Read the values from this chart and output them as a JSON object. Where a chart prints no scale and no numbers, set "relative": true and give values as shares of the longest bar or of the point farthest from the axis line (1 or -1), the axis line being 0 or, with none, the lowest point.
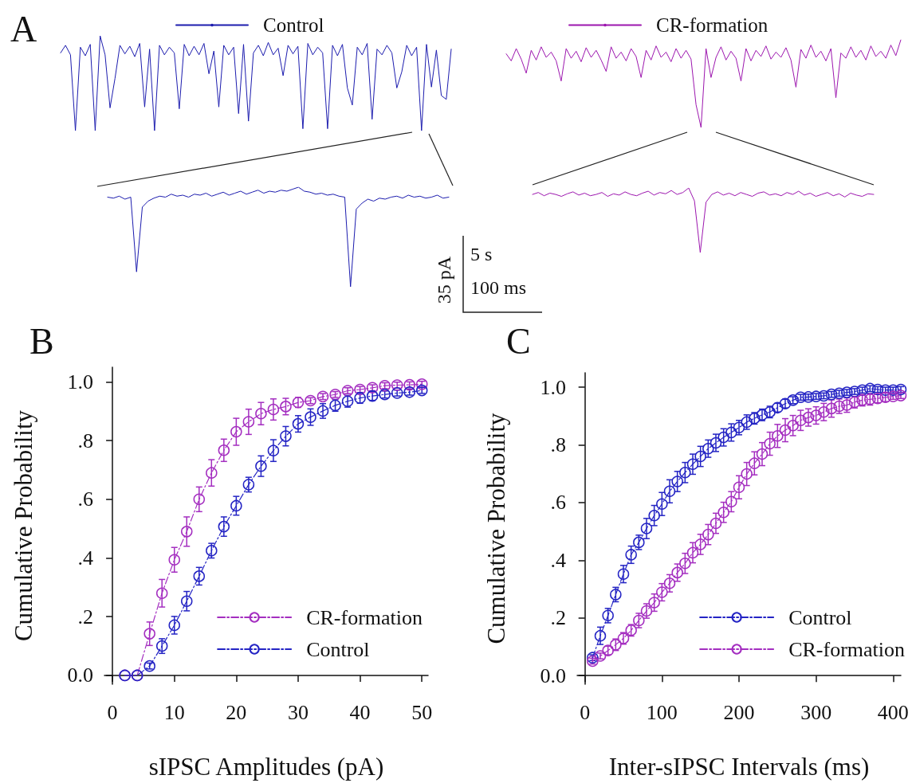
{
  "chart_data": [
    {
      "type": "line",
      "title": "A",
      "relative": true,
      "legend": "top",
      "categories": [
        null,
        null,
        null,
        null,
        null,
        null,
        null,
        null,
        null,
        null,
        null,
        null,
        null,
        null,
        null,
        null,
        null,
        null,
        null,
        null,
        null,
        null,
        null,
        null,
        null,
        null,
        null,
        null,
        null,
        null,
        null,
        null,
        null,
        null,
        null,
        null,
        null,
        null,
        null,
        null,
        null,
        null,
        null,
        null,
        null,
        null,
        null,
        null,
        null,
        null,
        null,
        null,
        null,
        null,
        null,
        null,
        null,
        null,
        null,
        null,
        null,
        null,
        null,
        null,
        null,
        null,
        null,
        null,
        null,
        null,
        null,
        null,
        null,
        null,
        null,
        null,
        null,
        null,
        null,
        null
      ],
      "series": [
        {
          "name": "Control",
          "color": "#1c1cae",
          "values": [
            0.82,
            0.9,
            0.8,
            0.0,
            0.88,
            0.79,
            0.91,
            0.0,
            1.0,
            0.8,
            0.24,
            0.55,
            0.9,
            0.81,
            0.89,
            0.78,
            0.92,
            0.25,
            0.86,
            0.0,
            0.9,
            0.8,
            0.88,
            0.82,
            0.23,
            0.91,
            0.79,
            0.89,
            0.8,
            0.92,
            0.6,
            0.84,
            0.25,
            0.9,
            0.8,
            0.88,
            0.18,
            0.91,
            0.1,
            0.82,
            0.9,
            0.79,
            0.93,
            0.8,
            0.87,
            0.58,
            0.9,
            0.81,
            0.89,
            0.02,
            0.92,
            0.8,
            0.88,
            0.82,
            0.02,
            0.9,
            0.79,
            0.91,
            0.45,
            0.27,
            0.88,
            0.8,
            0.92,
            0.12,
            0.86,
            0.8,
            0.9,
            0.82,
            0.45,
            0.62,
            0.9,
            0.79,
            0.88,
            0.0,
            0.91,
            0.46,
            0.85,
            0.37,
            0.33,
            0.86
          ]
        }
      ]
    },
    {
      "type": "line",
      "relative": true,
      "legend": "top",
      "categories": [
        null,
        null,
        null,
        null,
        null,
        null,
        null,
        null,
        null,
        null,
        null,
        null,
        null,
        null,
        null,
        null,
        null,
        null,
        null,
        null,
        null,
        null,
        null,
        null,
        null,
        null,
        null,
        null,
        null,
        null,
        null,
        null,
        null,
        null,
        null,
        null,
        null,
        null,
        null,
        null,
        null,
        null,
        null,
        null,
        null,
        null,
        null,
        null,
        null,
        null,
        null,
        null,
        null,
        null,
        null,
        null,
        null,
        null,
        null,
        null,
        null,
        null,
        null,
        null,
        null,
        null,
        null,
        null,
        null,
        null,
        null,
        null,
        null,
        null,
        null,
        null,
        null,
        null,
        null,
        null
      ],
      "series": [
        {
          "name": "CR-formation",
          "color": "#9c16ae",
          "values": [
            0.84,
            0.76,
            0.9,
            0.78,
            0.62,
            0.88,
            0.77,
            0.92,
            0.8,
            0.86,
            0.76,
            0.53,
            0.9,
            0.79,
            0.87,
            0.75,
            0.91,
            0.8,
            0.88,
            0.77,
            0.64,
            0.92,
            0.79,
            0.86,
            0.76,
            0.9,
            0.81,
            0.57,
            0.88,
            0.77,
            0.93,
            0.8,
            0.86,
            0.75,
            0.9,
            0.79,
            0.88,
            0.78,
            0.26,
            0.0,
            0.9,
            0.57,
            0.8,
            0.92,
            0.77,
            0.87,
            0.79,
            0.53,
            0.9,
            0.76,
            0.88,
            0.81,
            0.93,
            0.78,
            0.86,
            0.8,
            0.91,
            0.77,
            0.46,
            0.89,
            0.79,
            0.94,
            0.8,
            0.87,
            0.76,
            0.9,
            0.34,
            0.85,
            0.79,
            0.92,
            0.8,
            0.88,
            0.77,
            0.93,
            0.81,
            0.87,
            0.79,
            0.94,
            0.82,
            1.0
          ]
        }
      ]
    },
    {
      "type": "line",
      "relative": true,
      "categories": [
        null,
        null,
        null,
        null,
        null,
        null,
        null,
        null,
        null,
        null,
        null,
        null,
        null,
        null,
        null,
        null,
        null,
        null,
        null,
        null,
        null,
        null,
        null,
        null,
        null,
        null,
        null,
        null,
        null,
        null,
        null,
        null,
        null,
        null,
        null,
        null,
        null,
        null,
        null,
        null,
        null,
        null,
        null,
        null,
        null,
        null,
        null,
        null,
        null,
        null,
        null,
        null,
        null,
        null,
        null,
        null,
        null,
        null,
        null,
        null
      ],
      "series": [
        {
          "color": "#1c1cae",
          "values": [
            0.9,
            0.89,
            0.91,
            0.88,
            0.9,
            0.15,
            0.8,
            0.86,
            0.89,
            0.91,
            0.9,
            0.93,
            0.91,
            0.92,
            0.9,
            0.93,
            0.92,
            0.94,
            0.91,
            0.93,
            0.95,
            0.92,
            0.94,
            0.96,
            0.93,
            0.95,
            0.97,
            0.94,
            0.96,
            0.95,
            0.97,
            0.96,
            0.98,
            1.0,
            0.96,
            0.95,
            0.93,
            0.94,
            0.92,
            0.93,
            0.91,
            0.9,
            0.0,
            0.78,
            0.84,
            0.88,
            0.86,
            0.89,
            0.88,
            0.9,
            0.91,
            0.89,
            0.92,
            0.9,
            0.91,
            0.89,
            0.9,
            0.92,
            0.89,
            0.9
          ]
        }
      ]
    },
    {
      "type": "line",
      "relative": true,
      "categories": [
        null,
        null,
        null,
        null,
        null,
        null,
        null,
        null,
        null,
        null,
        null,
        null,
        null,
        null,
        null,
        null,
        null,
        null,
        null,
        null,
        null,
        null,
        null,
        null,
        null,
        null,
        null,
        null,
        null,
        null,
        null,
        null,
        null,
        null,
        null,
        null,
        null,
        null,
        null,
        null,
        null,
        null,
        null,
        null,
        null,
        null,
        null,
        null,
        null,
        null,
        null,
        null,
        null,
        null,
        null,
        null,
        null,
        null,
        null,
        null
      ],
      "annotations": [
        "35 pA",
        "5 s",
        "100 ms"
      ],
      "series": [
        {
          "color": "#9c16ae",
          "values": [
            0.9,
            0.93,
            0.88,
            0.92,
            0.9,
            0.87,
            0.91,
            0.94,
            0.89,
            0.92,
            0.88,
            0.9,
            0.93,
            0.87,
            0.91,
            0.89,
            0.94,
            0.9,
            0.88,
            0.92,
            0.95,
            0.89,
            0.93,
            0.91,
            0.96,
            0.9,
            0.93,
            1.0,
            0.8,
            0.0,
            0.78,
            0.9,
            0.94,
            0.89,
            0.92,
            0.88,
            0.93,
            0.9,
            0.87,
            0.92,
            0.94,
            0.89,
            0.91,
            0.88,
            0.93,
            0.9,
            0.95,
            0.89,
            0.92,
            0.87,
            0.9,
            0.93,
            0.88,
            0.91,
            0.86,
            0.92,
            0.89,
            0.87,
            0.91,
            0.9
          ]
        }
      ]
    },
    {
      "type": "line",
      "title": "B",
      "xlabel": "sIPSC Amplitudes (pA)",
      "ylabel": "Cumulative Probability",
      "xlim": [
        -1.3,
        51
      ],
      "ylim": [
        -0.03,
        1.05
      ],
      "xticks": [
        0,
        10,
        20,
        30,
        40,
        50
      ],
      "yticks": [
        {
          "value": 0,
          "label": "0.0"
        },
        {
          "value": 0.2,
          "label": ".2"
        },
        {
          "value": 0.4,
          "label": ".4"
        },
        {
          "value": 0.6,
          "label": ".6"
        },
        {
          "value": 0.8,
          "label": ".8"
        },
        {
          "value": 1,
          "label": "1.0"
        }
      ],
      "marker": "circle",
      "line_style": "dashed",
      "legend": "bottom right",
      "grid": false,
      "x": [
        2,
        4,
        6,
        8,
        10,
        12,
        14,
        16,
        18,
        20,
        22,
        24,
        26,
        28,
        30,
        32,
        34,
        36,
        38,
        40,
        42,
        44,
        46,
        48,
        50
      ],
      "series": [
        {
          "name": "CR-formation",
          "color": "#a42ec0",
          "values": [
            0,
            0,
            0.142,
            0.28,
            0.394,
            0.49,
            0.6,
            0.69,
            0.767,
            0.83,
            0.864,
            0.892,
            0.906,
            0.916,
            0.93,
            0.936,
            0.95,
            0.957,
            0.97,
            0.974,
            0.98,
            0.987,
            0.989,
            0.99,
            0.992
          ],
          "errors": [
            null,
            null,
            0.04,
            0.047,
            0.042,
            0.05,
            0.042,
            0.045,
            0.038,
            0.046,
            0.043,
            0.038,
            0.036,
            0.028,
            0.017,
            0.01,
            0.01,
            0.01,
            0.01,
            0.01,
            0.01,
            0.01,
            0.01,
            0.01,
            0.01
          ]
        },
        {
          "name": "Control",
          "color": "#2424c4",
          "values": [
            0,
            0,
            0.032,
            0.1,
            0.171,
            0.253,
            0.338,
            0.425,
            0.507,
            0.578,
            0.65,
            0.713,
            0.766,
            0.815,
            0.857,
            0.88,
            0.901,
            0.92,
            0.934,
            0.945,
            0.952,
            0.957,
            0.962,
            0.965,
            0.971
          ],
          "errors": [
            null,
            null,
            0.01,
            0.025,
            0.03,
            0.033,
            0.03,
            0.025,
            0.033,
            0.032,
            0.025,
            0.035,
            0.037,
            0.033,
            0.028,
            0.028,
            0.025,
            0.02,
            0.02,
            0.018,
            0.015,
            0.012,
            0.01,
            0.01,
            0.01
          ]
        }
      ]
    },
    {
      "type": "line",
      "title": "C",
      "xlabel": "Inter-sIPSC Intervals (ms)",
      "ylabel": "Cumulative Probability",
      "xlim": [
        -10,
        410
      ],
      "ylim": [
        -0.03,
        1.05
      ],
      "xticks": [
        0,
        100,
        200,
        300,
        400
      ],
      "yticks": [
        {
          "value": 0,
          "label": "0.0"
        },
        {
          "value": 0.2,
          "label": ".2"
        },
        {
          "value": 0.4,
          "label": ".4"
        },
        {
          "value": 0.6,
          "label": ".6"
        },
        {
          "value": 0.8,
          "label": ".8"
        },
        {
          "value": 1,
          "label": "1.0"
        }
      ],
      "marker": "circle",
      "line_style": "dashed",
      "legend": "bottom right",
      "grid": false,
      "x": [
        10,
        20,
        30,
        40,
        50,
        60,
        70,
        80,
        90,
        100,
        110,
        120,
        130,
        140,
        150,
        160,
        170,
        180,
        190,
        200,
        210,
        220,
        230,
        240,
        250,
        260,
        270,
        280,
        290,
        300,
        310,
        320,
        330,
        340,
        350,
        360,
        370,
        380,
        390,
        400,
        410
      ],
      "series": [
        {
          "name": "Control",
          "color": "#2424c4",
          "values": [
            0.062,
            0.138,
            0.208,
            0.281,
            0.352,
            0.419,
            0.462,
            0.51,
            0.555,
            0.595,
            0.639,
            0.673,
            0.704,
            0.733,
            0.76,
            0.787,
            0.807,
            0.826,
            0.843,
            0.86,
            0.879,
            0.892,
            0.904,
            0.914,
            0.929,
            0.943,
            0.955,
            0.965,
            0.966,
            0.968,
            0.97,
            0.975,
            0.979,
            0.982,
            0.985,
            0.99,
            0.995,
            0.992,
            0.99,
            0.99,
            0.992
          ],
          "errors": [
            0.01,
            0.03,
            0.025,
            0.025,
            0.03,
            0.03,
            0.025,
            0.035,
            0.035,
            0.04,
            0.04,
            0.035,
            0.035,
            0.035,
            0.035,
            0.03,
            0.03,
            0.03,
            0.03,
            0.025,
            0.025,
            0.02,
            0.02,
            0.02,
            0.015,
            0.015,
            0.012,
            0.01,
            0.01,
            0.01,
            0.01,
            0.01,
            0.01,
            0.01,
            0.01,
            0.01,
            0.01,
            0.01,
            0.01,
            0.01,
            0.01
          ]
        },
        {
          "name": "CR-formation",
          "color": "#a42ec0",
          "values": [
            0.05,
            0.068,
            0.087,
            0.107,
            0.129,
            0.157,
            0.191,
            0.224,
            0.253,
            0.289,
            0.32,
            0.357,
            0.389,
            0.426,
            0.455,
            0.489,
            0.528,
            0.566,
            0.603,
            0.653,
            0.699,
            0.736,
            0.768,
            0.804,
            0.831,
            0.851,
            0.867,
            0.885,
            0.895,
            0.902,
            0.914,
            0.926,
            0.934,
            0.938,
            0.948,
            0.955,
            0.958,
            0.961,
            0.965,
            0.968,
            0.971
          ],
          "errors": [
            0.01,
            0.01,
            0.015,
            0.02,
            0.02,
            0.02,
            0.025,
            0.025,
            0.03,
            0.03,
            0.03,
            0.03,
            0.035,
            0.035,
            0.035,
            0.035,
            0.035,
            0.035,
            0.035,
            0.04,
            0.04,
            0.04,
            0.04,
            0.04,
            0.04,
            0.04,
            0.035,
            0.035,
            0.03,
            0.03,
            0.03,
            0.03,
            0.025,
            0.025,
            0.02,
            0.02,
            0.02,
            0.015,
            0.015,
            0.01,
            0.01
          ]
        }
      ]
    }
  ]
}
